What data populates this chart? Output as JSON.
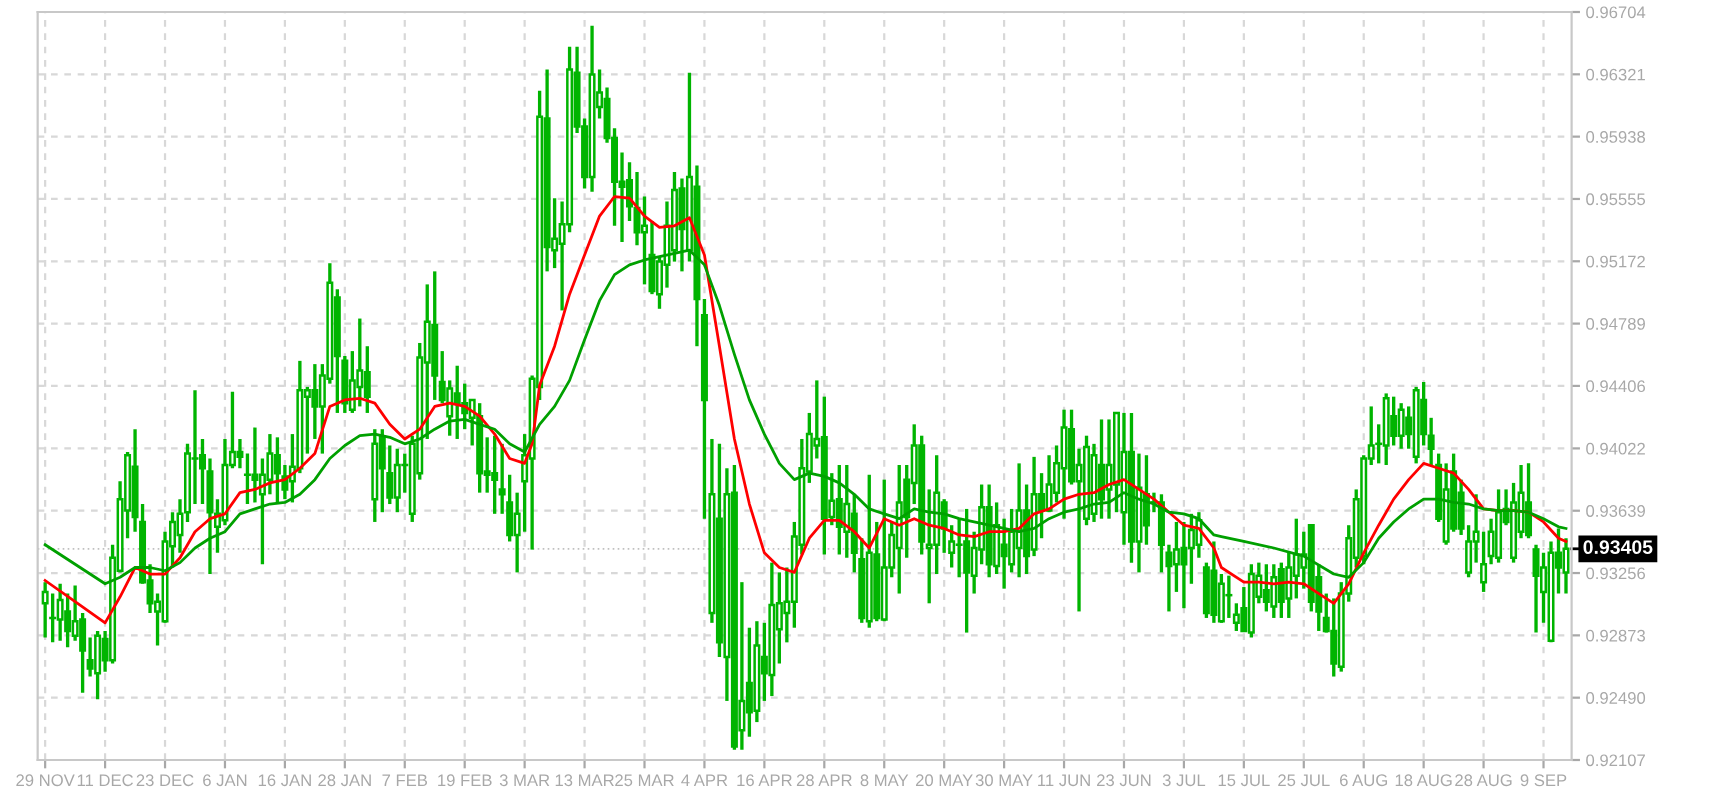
{
  "chart_data": {
    "type": "candlestick",
    "color": "#00b400",
    "categories": [
      "29 NOV",
      null,
      null,
      null,
      null,
      null,
      null,
      null,
      "11 DEC",
      null,
      null,
      null,
      null,
      null,
      null,
      null,
      "23 DEC",
      null,
      null,
      null,
      null,
      null,
      null,
      null,
      "6 JAN",
      null,
      null,
      null,
      null,
      null,
      null,
      null,
      "16 JAN",
      null,
      null,
      null,
      null,
      null,
      null,
      null,
      "28 JAN",
      null,
      null,
      null,
      null,
      null,
      null,
      null,
      "7 FEB",
      null,
      null,
      null,
      null,
      null,
      null,
      null,
      "19 FEB",
      null,
      null,
      null,
      null,
      null,
      null,
      null,
      "3 MAR",
      null,
      null,
      null,
      null,
      null,
      null,
      null,
      "13 MAR",
      null,
      null,
      null,
      null,
      null,
      null,
      null,
      "25 MAR",
      null,
      null,
      null,
      null,
      null,
      null,
      null,
      "4 APR",
      null,
      null,
      null,
      null,
      null,
      null,
      null,
      "16 APR",
      null,
      null,
      null,
      null,
      null,
      null,
      null,
      "28 APR",
      null,
      null,
      null,
      null,
      null,
      null,
      null,
      "8 MAY",
      null,
      null,
      null,
      null,
      null,
      null,
      null,
      "20 MAY",
      null,
      null,
      null,
      null,
      null,
      null,
      null,
      "30 MAY",
      null,
      null,
      null,
      null,
      null,
      null,
      null,
      "11 JUN",
      null,
      null,
      null,
      null,
      null,
      null,
      null,
      "23 JUN",
      null,
      null,
      null,
      null,
      null,
      null,
      null,
      "3 JUL",
      null,
      null,
      null,
      null,
      null,
      null,
      null,
      "15 JUL",
      null,
      null,
      null,
      null,
      null,
      null,
      null,
      "25 JUL",
      null,
      null,
      null,
      null,
      null,
      null,
      null,
      "6 AUG",
      null,
      null,
      null,
      null,
      null,
      null,
      null,
      "18 AUG",
      null,
      null,
      null,
      null,
      null,
      null,
      null,
      "28 AUG",
      null,
      null,
      null,
      null,
      null,
      null,
      null,
      "9 SEP",
      null,
      null,
      null
    ],
    "ohlc": [
      [
        0.9307,
        0.932,
        0.9286,
        0.9314
      ],
      [
        0.9298,
        0.9313,
        0.9283,
        0.9298
      ],
      [
        0.9297,
        0.9319,
        0.9284,
        0.9309
      ],
      [
        0.9302,
        0.9313,
        0.928,
        0.929
      ],
      [
        0.9287,
        0.9318,
        0.9284,
        0.9296
      ],
      [
        0.9297,
        0.9301,
        0.9252,
        0.9278
      ],
      [
        0.9272,
        0.9286,
        0.9262,
        0.9267
      ],
      [
        0.9264,
        0.929,
        0.9248,
        0.9287
      ],
      [
        0.9285,
        0.929,
        0.9265,
        0.9272
      ],
      [
        0.9272,
        0.9343,
        0.927,
        0.9335
      ],
      [
        0.9327,
        0.9382,
        0.9326,
        0.9371
      ],
      [
        0.9364,
        0.94,
        0.9347,
        0.9398
      ],
      [
        0.9391,
        0.9414,
        0.9351,
        0.936
      ],
      [
        0.9357,
        0.9368,
        0.9319,
        0.932
      ],
      [
        0.9321,
        0.9331,
        0.9301,
        0.9307
      ],
      [
        0.9302,
        0.9313,
        0.9281,
        0.9308
      ],
      [
        0.9296,
        0.9351,
        0.9295,
        0.9345
      ],
      [
        0.9342,
        0.9363,
        0.9329,
        0.9357
      ],
      [
        0.9349,
        0.9371,
        0.9338,
        0.9362
      ],
      [
        0.9363,
        0.9405,
        0.9357,
        0.9399
      ],
      [
        0.9396,
        0.9438,
        0.9368,
        0.9396
      ],
      [
        0.9398,
        0.9408,
        0.9368,
        0.939
      ],
      [
        0.9388,
        0.9396,
        0.9325,
        0.9363
      ],
      [
        0.9354,
        0.9371,
        0.9338,
        0.9362
      ],
      [
        0.9358,
        0.9408,
        0.9355,
        0.9392
      ],
      [
        0.9392,
        0.9437,
        0.939,
        0.94
      ],
      [
        0.94,
        0.9408,
        0.939,
        0.9397
      ],
      [
        0.9386,
        0.9399,
        0.9368,
        0.9386
      ],
      [
        0.9386,
        0.9415,
        0.9369,
        0.9383
      ],
      [
        0.9374,
        0.9396,
        0.9331,
        0.9386
      ],
      [
        0.9383,
        0.9411,
        0.9374,
        0.9399
      ],
      [
        0.9398,
        0.9409,
        0.9368,
        0.9387
      ],
      [
        0.9385,
        0.9392,
        0.9371,
        0.9377
      ],
      [
        0.9382,
        0.9411,
        0.9369,
        0.9391
      ],
      [
        0.939,
        0.9456,
        0.9387,
        0.9438
      ],
      [
        0.9434,
        0.944,
        0.9399,
        0.9438
      ],
      [
        0.9438,
        0.9454,
        0.9408,
        0.9428
      ],
      [
        0.9428,
        0.9454,
        0.9399,
        0.9447
      ],
      [
        0.9445,
        0.9516,
        0.9442,
        0.9504
      ],
      [
        0.9495,
        0.95,
        0.9424,
        0.9459
      ],
      [
        0.9456,
        0.9459,
        0.9424,
        0.943
      ],
      [
        0.9426,
        0.9462,
        0.9424,
        0.9444
      ],
      [
        0.944,
        0.9482,
        0.9428,
        0.945
      ],
      [
        0.9449,
        0.9465,
        0.9424,
        0.9434
      ],
      [
        0.9371,
        0.9414,
        0.9357,
        0.9405
      ],
      [
        0.9409,
        0.9414,
        0.9363,
        0.939
      ],
      [
        0.9387,
        0.9404,
        0.9368,
        0.9372
      ],
      [
        0.9372,
        0.9402,
        0.9363,
        0.9392
      ],
      [
        0.9392,
        0.9399,
        0.9375,
        0.9392
      ],
      [
        0.9362,
        0.941,
        0.9357,
        0.9405
      ],
      [
        0.9387,
        0.9467,
        0.9383,
        0.9458
      ],
      [
        0.9455,
        0.9503,
        0.9408,
        0.948
      ],
      [
        0.9478,
        0.9511,
        0.9432,
        0.9447
      ],
      [
        0.9443,
        0.9462,
        0.943,
        0.9432
      ],
      [
        0.9422,
        0.9444,
        0.941,
        0.9439
      ],
      [
        0.9436,
        0.9453,
        0.9408,
        0.943
      ],
      [
        0.943,
        0.9442,
        0.9414,
        0.9424
      ],
      [
        0.9421,
        0.9432,
        0.9404,
        0.9432
      ],
      [
        0.9422,
        0.943,
        0.9375,
        0.9387
      ],
      [
        0.9388,
        0.9409,
        0.9375,
        0.9386
      ],
      [
        0.9387,
        0.941,
        0.9362,
        0.9383
      ],
      [
        0.9377,
        0.9405,
        0.9362,
        0.9374
      ],
      [
        0.9369,
        0.9386,
        0.9345,
        0.9349
      ],
      [
        0.9349,
        0.9375,
        0.9326,
        0.9362
      ],
      [
        0.9382,
        0.9411,
        0.9351,
        0.9398
      ],
      [
        0.9396,
        0.9447,
        0.934,
        0.9445
      ],
      [
        0.944,
        0.9622,
        0.9432,
        0.9606
      ],
      [
        0.9605,
        0.9635,
        0.9511,
        0.9526
      ],
      [
        0.9524,
        0.9556,
        0.9513,
        0.9531
      ],
      [
        0.9528,
        0.9554,
        0.9487,
        0.954
      ],
      [
        0.954,
        0.9649,
        0.9535,
        0.9635
      ],
      [
        0.9633,
        0.9649,
        0.9596,
        0.96
      ],
      [
        0.96,
        0.9605,
        0.9562,
        0.9569
      ],
      [
        0.9569,
        0.9662,
        0.956,
        0.9632
      ],
      [
        0.9612,
        0.9635,
        0.9605,
        0.9621
      ],
      [
        0.9617,
        0.9624,
        0.959,
        0.9593
      ],
      [
        0.9593,
        0.9599,
        0.9539,
        0.9566
      ],
      [
        0.9566,
        0.9584,
        0.9529,
        0.9563
      ],
      [
        0.9567,
        0.9578,
        0.9542,
        0.9551
      ],
      [
        0.955,
        0.9572,
        0.9527,
        0.9535
      ],
      [
        0.9535,
        0.9557,
        0.9503,
        0.9539
      ],
      [
        0.9521,
        0.9542,
        0.9497,
        0.9499
      ],
      [
        0.9497,
        0.952,
        0.9488,
        0.9517
      ],
      [
        0.9515,
        0.9554,
        0.9501,
        0.9539
      ],
      [
        0.9524,
        0.9572,
        0.9517,
        0.9561
      ],
      [
        0.9562,
        0.9568,
        0.9511,
        0.9537
      ],
      [
        0.9524,
        0.9633,
        0.9517,
        0.9569
      ],
      [
        0.9563,
        0.9576,
        0.9465,
        0.9494
      ],
      [
        0.9484,
        0.9494,
        0.9359,
        0.9432
      ],
      [
        0.9301,
        0.9408,
        0.9295,
        0.9374
      ],
      [
        0.9359,
        0.9405,
        0.9274,
        0.9283
      ],
      [
        0.9274,
        0.939,
        0.9247,
        0.9374
      ],
      [
        0.9375,
        0.9392,
        0.9217,
        0.9219
      ],
      [
        0.9229,
        0.932,
        0.9217,
        0.9247
      ],
      [
        0.9258,
        0.9292,
        0.9225,
        0.924
      ],
      [
        0.9241,
        0.9296,
        0.9234,
        0.9281
      ],
      [
        0.9274,
        0.9295,
        0.9247,
        0.9264
      ],
      [
        0.9263,
        0.9332,
        0.925,
        0.9306
      ],
      [
        0.9291,
        0.9326,
        0.927,
        0.9307
      ],
      [
        0.9301,
        0.9329,
        0.9283,
        0.9308
      ],
      [
        0.9308,
        0.9357,
        0.9292,
        0.9348
      ],
      [
        0.9343,
        0.9408,
        0.9337,
        0.939
      ],
      [
        0.9388,
        0.9424,
        0.9381,
        0.9411
      ],
      [
        0.9404,
        0.9444,
        0.9396,
        0.9408
      ],
      [
        0.9409,
        0.9434,
        0.9337,
        0.9359
      ],
      [
        0.936,
        0.9387,
        0.9355,
        0.937
      ],
      [
        0.9371,
        0.9392,
        0.9337,
        0.9354
      ],
      [
        0.9351,
        0.9392,
        0.9335,
        0.9368
      ],
      [
        0.9362,
        0.9374,
        0.9326,
        0.9338
      ],
      [
        0.9334,
        0.9347,
        0.9295,
        0.9298
      ],
      [
        0.9296,
        0.9386,
        0.9292,
        0.9338
      ],
      [
        0.9337,
        0.9357,
        0.9296,
        0.9298
      ],
      [
        0.9297,
        0.9383,
        0.9296,
        0.9329
      ],
      [
        0.9329,
        0.9357,
        0.9323,
        0.9349
      ],
      [
        0.9341,
        0.9392,
        0.9313,
        0.9369
      ],
      [
        0.9383,
        0.9392,
        0.9335,
        0.936
      ],
      [
        0.9381,
        0.9417,
        0.9368,
        0.9404
      ],
      [
        0.9404,
        0.941,
        0.9337,
        0.9345
      ],
      [
        0.9341,
        0.9377,
        0.9307,
        0.9343
      ],
      [
        0.9343,
        0.9398,
        0.9325,
        0.9375
      ],
      [
        0.9369,
        0.9371,
        0.9338,
        0.9353
      ],
      [
        0.9338,
        0.9355,
        0.9329,
        0.9345
      ],
      [
        0.9343,
        0.9359,
        0.9323,
        0.9343
      ],
      [
        0.9345,
        0.9365,
        0.9289,
        0.9326
      ],
      [
        0.9324,
        0.9351,
        0.9313,
        0.9341
      ],
      [
        0.934,
        0.938,
        0.9331,
        0.9366
      ],
      [
        0.9366,
        0.938,
        0.9323,
        0.9331
      ],
      [
        0.933,
        0.9369,
        0.9325,
        0.9355
      ],
      [
        0.9343,
        0.9359,
        0.9316,
        0.9336
      ],
      [
        0.9331,
        0.9365,
        0.9326,
        0.9351
      ],
      [
        0.9341,
        0.9393,
        0.9323,
        0.9364
      ],
      [
        0.9364,
        0.938,
        0.9325,
        0.9336
      ],
      [
        0.934,
        0.9397,
        0.9336,
        0.9374
      ],
      [
        0.9374,
        0.9387,
        0.9347,
        0.9364
      ],
      [
        0.9364,
        0.9398,
        0.9363,
        0.938
      ],
      [
        0.9375,
        0.9404,
        0.9369,
        0.9393
      ],
      [
        0.939,
        0.9426,
        0.9359,
        0.9415
      ],
      [
        0.9414,
        0.9426,
        0.938,
        0.9382
      ],
      [
        0.9382,
        0.9402,
        0.9302,
        0.9392
      ],
      [
        0.9359,
        0.941,
        0.9355,
        0.9403
      ],
      [
        0.9362,
        0.9405,
        0.9357,
        0.9398
      ],
      [
        0.9392,
        0.942,
        0.9359,
        0.9371
      ],
      [
        0.9377,
        0.942,
        0.9359,
        0.9392
      ],
      [
        0.938,
        0.9424,
        0.9363,
        0.9424
      ],
      [
        0.9363,
        0.9424,
        0.9343,
        0.94
      ],
      [
        0.94,
        0.9424,
        0.9332,
        0.9345
      ],
      [
        0.9345,
        0.9399,
        0.9326,
        0.9378
      ],
      [
        0.9374,
        0.9398,
        0.9343,
        0.9355
      ],
      [
        0.9369,
        0.9375,
        0.9363,
        0.9369
      ],
      [
        0.9369,
        0.9374,
        0.9326,
        0.9343
      ],
      [
        0.9338,
        0.9343,
        0.9302,
        0.933
      ],
      [
        0.9331,
        0.9357,
        0.9314,
        0.934
      ],
      [
        0.9341,
        0.9357,
        0.9304,
        0.9331
      ],
      [
        0.9341,
        0.9362,
        0.9319,
        0.9352
      ],
      [
        0.9343,
        0.9363,
        0.9335,
        0.9358
      ],
      [
        0.9329,
        0.9332,
        0.9298,
        0.9301
      ],
      [
        0.9327,
        0.9345,
        0.9295,
        0.93
      ],
      [
        0.9296,
        0.9325,
        0.9295,
        0.9319
      ],
      [
        0.9312,
        0.9324,
        0.9298,
        0.9312
      ],
      [
        0.9295,
        0.9307,
        0.929,
        0.93
      ],
      [
        0.9304,
        0.9317,
        0.929,
        0.929
      ],
      [
        0.9289,
        0.9331,
        0.9286,
        0.9325
      ],
      [
        0.9311,
        0.9332,
        0.9307,
        0.9324
      ],
      [
        0.9315,
        0.9331,
        0.9302,
        0.9308
      ],
      [
        0.9305,
        0.9331,
        0.9298,
        0.9323
      ],
      [
        0.9328,
        0.9332,
        0.9298,
        0.9308
      ],
      [
        0.931,
        0.9338,
        0.9298,
        0.9329
      ],
      [
        0.9324,
        0.9359,
        0.931,
        0.9337
      ],
      [
        0.9329,
        0.9351,
        0.9316,
        0.9337
      ],
      [
        0.9355,
        0.9355,
        0.9302,
        0.9308
      ],
      [
        0.9323,
        0.9331,
        0.929,
        0.9302
      ],
      [
        0.9298,
        0.9313,
        0.9289,
        0.929
      ],
      [
        0.929,
        0.931,
        0.9262,
        0.927
      ],
      [
        0.9268,
        0.932,
        0.9265,
        0.9313
      ],
      [
        0.9313,
        0.9355,
        0.9308,
        0.9347
      ],
      [
        0.9335,
        0.9377,
        0.9329,
        0.9371
      ],
      [
        0.9336,
        0.9398,
        0.9331,
        0.9396
      ],
      [
        0.9396,
        0.9428,
        0.9392,
        0.9404
      ],
      [
        0.9405,
        0.9417,
        0.9393,
        0.9405
      ],
      [
        0.9404,
        0.9436,
        0.9392,
        0.9433
      ],
      [
        0.9422,
        0.9434,
        0.9404,
        0.941
      ],
      [
        0.941,
        0.943,
        0.9402,
        0.9426
      ],
      [
        0.9421,
        0.9428,
        0.9402,
        0.9411
      ],
      [
        0.9397,
        0.944,
        0.9393,
        0.9438
      ],
      [
        0.9432,
        0.9443,
        0.9404,
        0.9411
      ],
      [
        0.941,
        0.9421,
        0.9392,
        0.9402
      ],
      [
        0.9392,
        0.9399,
        0.9357,
        0.9359
      ],
      [
        0.9345,
        0.9393,
        0.9343,
        0.9377
      ],
      [
        0.9388,
        0.9399,
        0.9351,
        0.9353
      ],
      [
        0.9375,
        0.9383,
        0.9349,
        0.9353
      ],
      [
        0.9326,
        0.9355,
        0.9323,
        0.9345
      ],
      [
        0.9345,
        0.9374,
        0.9332,
        0.9351
      ],
      [
        0.932,
        0.9351,
        0.9314,
        0.9331
      ],
      [
        0.9336,
        0.9359,
        0.9331,
        0.9351
      ],
      [
        0.9335,
        0.9377,
        0.9332,
        0.9363
      ],
      [
        0.9365,
        0.9377,
        0.9355,
        0.9357
      ],
      [
        0.9335,
        0.9381,
        0.9332,
        0.9369
      ],
      [
        0.9351,
        0.9392,
        0.9347,
        0.9375
      ],
      [
        0.9369,
        0.9393,
        0.9347,
        0.9349
      ],
      [
        0.934,
        0.9343,
        0.9289,
        0.9324
      ],
      [
        0.9314,
        0.9338,
        0.9295,
        0.9329
      ],
      [
        0.9284,
        0.9345,
        0.9283,
        0.9338
      ],
      [
        0.9338,
        0.9353,
        0.9313,
        0.9329
      ],
      [
        0.9326,
        0.9347,
        0.9313,
        0.93405
      ]
    ],
    "series": [
      {
        "type": "line",
        "color": "#ff0000",
        "values": [
          0.9321,
          null,
          null,
          null,
          0.9308,
          null,
          null,
          null,
          0.9295,
          null,
          0.9311,
          null,
          0.9329,
          null,
          0.9325,
          null,
          0.9325,
          null,
          0.9335,
          null,
          0.9351,
          null,
          0.9359,
          null,
          0.9362,
          null,
          0.9375,
          null,
          0.9377,
          null,
          0.9381,
          null,
          0.9383,
          null,
          0.939,
          null,
          0.9399,
          null,
          0.9428,
          null,
          0.9432,
          null,
          0.9433,
          null,
          0.943,
          null,
          0.9417,
          null,
          0.9408,
          null,
          0.9414,
          null,
          0.9428,
          null,
          0.943,
          null,
          0.9428,
          null,
          0.9422,
          null,
          0.9411,
          null,
          0.9396,
          null,
          0.9393,
          0.9405,
          0.9441,
          null,
          0.9465,
          null,
          0.9497,
          null,
          0.9521,
          null,
          0.9545,
          null,
          0.9557,
          null,
          0.9556,
          null,
          0.9545,
          null,
          0.9538,
          null,
          0.9539,
          null,
          0.9544,
          null,
          0.9521,
          null,
          0.9465,
          null,
          0.9408,
          null,
          0.9368,
          null,
          0.9338,
          null,
          0.9329,
          null,
          0.9326,
          null,
          0.9347,
          null,
          0.9358,
          null,
          0.9358,
          null,
          0.9351,
          null,
          0.9341,
          null,
          0.9359,
          null,
          0.9355,
          null,
          0.9359,
          null,
          0.9355,
          null,
          0.9353,
          null,
          0.9349,
          null,
          0.9348,
          null,
          0.9351,
          null,
          0.9351,
          null,
          0.9353,
          null,
          0.9362,
          null,
          0.9365,
          null,
          0.9371,
          null,
          0.9374,
          null,
          0.9375,
          null,
          0.938,
          null,
          0.9383,
          null,
          0.9377,
          null,
          0.9371,
          null,
          0.9363,
          null,
          0.9355,
          null,
          0.9353,
          null,
          0.9341,
          0.9329,
          null,
          null,
          0.932,
          null,
          0.932,
          null,
          0.9319,
          null,
          0.932,
          null,
          0.9319,
          null,
          0.9313,
          null,
          0.9307,
          null,
          0.9319,
          null,
          0.9338,
          null,
          0.9355,
          null,
          0.9371,
          null,
          0.9383,
          null,
          0.9393,
          null,
          0.939,
          null,
          0.9387,
          null,
          0.9377,
          null,
          0.9365,
          null,
          0.9364,
          null,
          0.9364,
          null,
          0.9363,
          null,
          0.9357,
          null,
          0.9347,
          0.9345
        ]
      },
      {
        "type": "line",
        "color": "#00a000",
        "values": [
          0.9343,
          null,
          null,
          null,
          0.9331,
          null,
          null,
          null,
          0.9319,
          null,
          0.9323,
          null,
          0.9329,
          null,
          0.9329,
          null,
          0.9327,
          null,
          0.9332,
          null,
          0.9341,
          null,
          0.9347,
          null,
          0.9351,
          null,
          0.9362,
          null,
          0.9365,
          null,
          0.9368,
          null,
          0.9369,
          null,
          0.9374,
          null,
          0.9383,
          null,
          0.9396,
          null,
          0.9404,
          null,
          0.941,
          null,
          0.9411,
          null,
          0.9409,
          null,
          0.9405,
          null,
          0.9408,
          null,
          0.9414,
          null,
          0.9419,
          null,
          0.942,
          null,
          0.9417,
          null,
          0.9414,
          null,
          0.9405,
          null,
          0.94,
          null,
          0.9417,
          null,
          0.9428,
          null,
          0.9444,
          null,
          0.9469,
          null,
          0.9493,
          null,
          0.9509,
          null,
          0.9515,
          null,
          0.9518,
          null,
          0.952,
          null,
          0.9522,
          null,
          0.9524,
          null,
          0.9515,
          null,
          0.949,
          null,
          0.946,
          null,
          0.9432,
          null,
          0.9411,
          null,
          0.9393,
          null,
          0.9383,
          null,
          0.9387,
          null,
          0.9385,
          null,
          0.9381,
          null,
          0.9374,
          null,
          0.9365,
          null,
          0.9362,
          null,
          0.9359,
          null,
          0.9365,
          null,
          0.9363,
          null,
          0.9362,
          null,
          0.9359,
          null,
          0.9357,
          null,
          0.9355,
          null,
          0.9353,
          null,
          0.9351,
          null,
          0.9353,
          null,
          0.9359,
          null,
          0.9363,
          null,
          0.9365,
          null,
          0.9368,
          null,
          0.9369,
          null,
          0.9375,
          null,
          0.9371,
          null,
          0.9368,
          null,
          0.9363,
          null,
          0.9362,
          null,
          0.9359,
          null,
          0.9349,
          0.9348,
          null,
          null,
          0.9345,
          null,
          null,
          null,
          0.9341,
          null,
          null,
          null,
          0.9336,
          null,
          null,
          null,
          0.9325,
          null,
          0.9323,
          null,
          0.9332,
          null,
          0.9347,
          null,
          0.9357,
          null,
          0.9365,
          null,
          0.9371,
          null,
          0.9371,
          null,
          0.9369,
          null,
          0.9368,
          null,
          0.9365,
          null,
          0.9364,
          null,
          0.9364,
          null,
          0.9363,
          null,
          0.9359,
          null,
          0.9354,
          0.9353
        ]
      }
    ],
    "ylim": [
      0.92107,
      0.96704
    ],
    "yticks": [
      0.96704,
      0.96321,
      0.95938,
      0.95555,
      0.95172,
      0.94789,
      0.94406,
      0.94022,
      0.93639,
      0.93256,
      0.92873,
      {
        "value": 0.9249,
        "label": "0.92490"
      },
      0.92107
    ],
    "ref_lines": [
      {
        "axis": "y",
        "value": 0.93405,
        "label": "0.93405"
      }
    ],
    "grid": true,
    "legend": false
  }
}
